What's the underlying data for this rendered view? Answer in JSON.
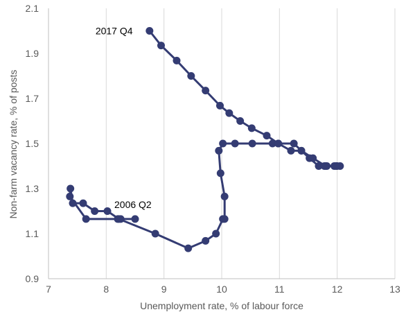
{
  "chart_data": {
    "type": "line",
    "title": "",
    "xlabel": "Unemployment rate, % of labour force",
    "ylabel": "Non-farm vacancy rate, % of posts",
    "xlim": [
      7,
      13
    ],
    "ylim": [
      0.9,
      2.1
    ],
    "x_ticks": [
      7,
      8,
      9,
      10,
      11,
      12,
      13
    ],
    "y_ticks": [
      0.9,
      1.1,
      1.3,
      1.5,
      1.7,
      1.9,
      2.1
    ],
    "y_tick_labels": [
      "0.9",
      "1.1",
      "1.3",
      "1.5",
      "1.7",
      "1.9",
      "2.1"
    ],
    "grid": "vertical",
    "legend": "none",
    "series": [
      {
        "color": "#343c73",
        "points": [
          [
            8.5,
            1.165
          ],
          [
            8.25,
            1.165
          ],
          [
            8.2,
            1.165
          ],
          [
            7.65,
            1.165
          ],
          [
            7.37,
            1.265
          ],
          [
            7.38,
            1.3
          ],
          [
            7.42,
            1.235
          ],
          [
            7.6,
            1.235
          ],
          [
            7.8,
            1.2
          ],
          [
            8.02,
            1.2
          ],
          [
            8.22,
            1.165
          ],
          [
            8.85,
            1.1
          ],
          [
            9.42,
            1.035
          ],
          [
            9.72,
            1.068
          ],
          [
            9.9,
            1.1
          ],
          [
            10.02,
            1.165
          ],
          [
            10.05,
            1.165
          ],
          [
            10.05,
            1.265
          ],
          [
            9.98,
            1.368
          ],
          [
            9.95,
            1.468
          ],
          [
            10.02,
            1.5
          ],
          [
            10.23,
            1.5
          ],
          [
            10.53,
            1.5
          ],
          [
            10.88,
            1.5
          ],
          [
            10.98,
            1.5
          ],
          [
            11.25,
            1.5
          ],
          [
            11.38,
            1.468
          ],
          [
            11.52,
            1.435
          ],
          [
            11.68,
            1.4
          ],
          [
            11.78,
            1.4
          ],
          [
            11.82,
            1.4
          ],
          [
            11.95,
            1.4
          ],
          [
            12.0,
            1.4
          ],
          [
            12.05,
            1.4
          ],
          [
            11.98,
            1.4
          ],
          [
            11.8,
            1.4
          ],
          [
            11.58,
            1.435
          ],
          [
            11.38,
            1.468
          ],
          [
            11.2,
            1.468
          ],
          [
            10.98,
            1.5
          ],
          [
            10.78,
            1.535
          ],
          [
            10.52,
            1.568
          ],
          [
            10.32,
            1.6
          ],
          [
            10.13,
            1.635
          ],
          [
            9.97,
            1.668
          ],
          [
            9.72,
            1.735
          ],
          [
            9.47,
            1.8
          ],
          [
            9.22,
            1.868
          ],
          [
            8.95,
            1.935
          ],
          [
            8.75,
            2.0
          ]
        ]
      }
    ],
    "annotations": [
      {
        "text": "2017 Q4",
        "x": 8.75,
        "y": 2.0
      },
      {
        "text": "2006 Q2",
        "x": 8.5,
        "y": 1.165
      }
    ]
  }
}
